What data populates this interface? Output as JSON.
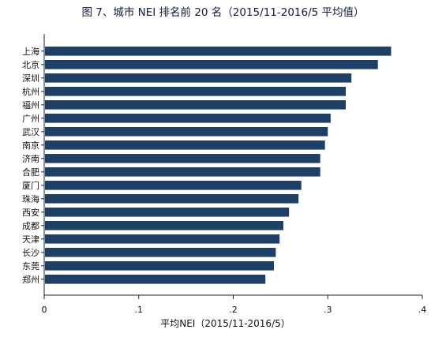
{
  "chart_data": {
    "type": "bar",
    "orientation": "horizontal",
    "title": "图 7、城市 NEI 排名前 20 名（2015/11-2016/5 平均值）",
    "xlabel": "平均NEI（2015/11-2016/5）",
    "ylabel": "",
    "xlim": [
      0,
      0.4
    ],
    "xticks": [
      0,
      0.1,
      0.2,
      0.3,
      0.4
    ],
    "xtick_labels": [
      "0",
      ".1",
      ".2",
      ".3",
      ".4"
    ],
    "grid": false,
    "legend": "none",
    "bar_color": "#1e3f66",
    "categories": [
      "上海",
      "北京",
      "深圳",
      "杭州",
      "福州",
      "广州",
      "武汉",
      "南京",
      "济南",
      "合肥",
      "厦门",
      "珠海",
      "西安",
      "成都",
      "天津",
      "长沙",
      "东莞",
      "郑州"
    ],
    "values": [
      0.367,
      0.353,
      0.325,
      0.319,
      0.319,
      0.303,
      0.3,
      0.297,
      0.292,
      0.292,
      0.272,
      0.269,
      0.259,
      0.253,
      0.249,
      0.245,
      0.243,
      0.234
    ]
  }
}
